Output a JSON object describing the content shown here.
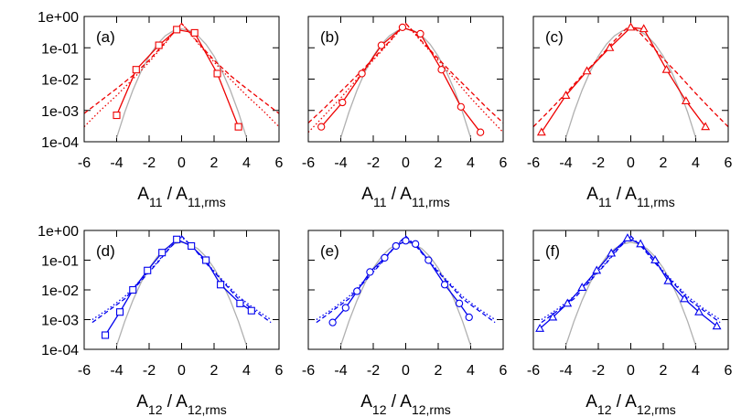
{
  "chart_data": [
    {
      "type": "line",
      "label": "(a)",
      "log_y": true,
      "xlabel": [
        {
          "text": "A"
        },
        {
          "text": "11",
          "sub": true
        },
        {
          "text": " / A"
        },
        {
          "text": "11,rms",
          "sub": true
        }
      ],
      "xlim": [
        -6,
        6
      ],
      "xticks": [
        -6,
        -4,
        -2,
        0,
        2,
        4,
        6
      ],
      "ylim": [
        0.0001,
        1
      ],
      "yticks": [
        {
          "value": 0.0001,
          "label": "1e-04"
        },
        {
          "value": 0.001,
          "label": "1e-03"
        },
        {
          "value": 0.01,
          "label": "1e-02"
        },
        {
          "value": 0.1,
          "label": "1e-01"
        },
        {
          "value": 1,
          "label": "1e+00"
        }
      ],
      "series": [
        {
          "color": "#b0b0b0",
          "dash": "solid",
          "x": [
            -4,
            -3.5,
            -3,
            -2.5,
            -2,
            -1.5,
            -1,
            -0.5,
            0,
            0.5,
            1,
            1.5,
            2,
            2.5,
            3,
            3.5,
            4
          ],
          "values": [
            0.000134,
            0.000873,
            0.00443,
            0.0175,
            0.054,
            0.1295,
            0.242,
            0.352,
            0.399,
            0.352,
            0.242,
            0.1295,
            0.054,
            0.0175,
            0.00443,
            0.000873,
            0.000134
          ]
        },
        {
          "color": "#ee0000",
          "dash": "dashed",
          "x": [
            -6,
            -5,
            -4,
            -3,
            -2,
            -1,
            -0.5,
            0,
            0.5,
            1,
            2,
            3,
            4,
            5,
            6
          ],
          "values": [
            0.0008,
            0.002,
            0.005,
            0.013,
            0.04,
            0.15,
            0.3,
            0.6,
            0.3,
            0.15,
            0.04,
            0.013,
            0.005,
            0.002,
            0.0008
          ]
        },
        {
          "color": "#ee0000",
          "dash": "dotted",
          "x": [
            -6,
            -5,
            -4,
            -3,
            -2,
            -1,
            -0.5,
            0,
            0.5,
            1,
            2,
            3,
            4,
            5,
            6
          ],
          "values": [
            0.0003,
            0.001,
            0.003,
            0.01,
            0.035,
            0.14,
            0.3,
            0.6,
            0.3,
            0.14,
            0.035,
            0.01,
            0.003,
            0.001,
            0.0003
          ]
        },
        {
          "color": "#ee0000",
          "dash": "solid",
          "marker": "square",
          "x": [
            -4,
            -2.8,
            -1.4,
            -0.3,
            0.8,
            2.2,
            3.5
          ],
          "values": [
            0.0007,
            0.02,
            0.12,
            0.38,
            0.3,
            0.015,
            0.0003
          ]
        }
      ]
    },
    {
      "type": "line",
      "label": "(b)",
      "log_y": true,
      "xlabel": [
        {
          "text": "A"
        },
        {
          "text": "11",
          "sub": true
        },
        {
          "text": " / A"
        },
        {
          "text": "11,rms",
          "sub": true
        }
      ],
      "xlim": [
        -6,
        6
      ],
      "xticks": [
        -6,
        -4,
        -2,
        0,
        2,
        4,
        6
      ],
      "ylim": [
        0.0001,
        1
      ],
      "yticks": [
        0.0001,
        0.001,
        0.01,
        0.1,
        1
      ],
      "series": [
        {
          "color": "#b0b0b0",
          "dash": "solid",
          "x": [
            -4,
            -3.5,
            -3,
            -2.5,
            -2,
            -1.5,
            -1,
            -0.5,
            0,
            0.5,
            1,
            1.5,
            2,
            2.5,
            3,
            3.5,
            4
          ],
          "values": [
            0.000134,
            0.000873,
            0.00443,
            0.0175,
            0.054,
            0.1295,
            0.242,
            0.352,
            0.399,
            0.352,
            0.242,
            0.1295,
            0.054,
            0.0175,
            0.00443,
            0.000873,
            0.000134
          ]
        },
        {
          "color": "#ee0000",
          "dash": "dashed",
          "x": [
            -6,
            -5,
            -4,
            -3,
            -2,
            -1,
            -0.5,
            0,
            0.5,
            1,
            2,
            3,
            4,
            5,
            6
          ],
          "values": [
            0.0004,
            0.0012,
            0.004,
            0.013,
            0.045,
            0.16,
            0.32,
            0.6,
            0.32,
            0.16,
            0.045,
            0.013,
            0.004,
            0.0012,
            0.0004
          ]
        },
        {
          "color": "#ee0000",
          "dash": "dotted",
          "x": [
            -6,
            -5,
            -4,
            -3,
            -2,
            -1,
            -0.5,
            0,
            0.5,
            1,
            2,
            3,
            4,
            5,
            6
          ],
          "values": [
            0.0002,
            0.0007,
            0.0025,
            0.01,
            0.04,
            0.15,
            0.3,
            0.6,
            0.3,
            0.15,
            0.04,
            0.01,
            0.0025,
            0.0007,
            0.0002
          ]
        },
        {
          "color": "#ee0000",
          "dash": "solid",
          "marker": "circle",
          "x": [
            -5.2,
            -3.9,
            -2.7,
            -1.5,
            -0.2,
            0.9,
            2.2,
            3.4,
            4.6
          ],
          "values": [
            0.0003,
            0.0018,
            0.015,
            0.12,
            0.45,
            0.28,
            0.02,
            0.0013,
            0.0002
          ]
        }
      ]
    },
    {
      "type": "line",
      "label": "(c)",
      "log_y": true,
      "xlabel": [
        {
          "text": "A"
        },
        {
          "text": "11",
          "sub": true
        },
        {
          "text": " / A"
        },
        {
          "text": "11,rms",
          "sub": true
        }
      ],
      "xlim": [
        -6,
        6
      ],
      "xticks": [
        -6,
        -4,
        -2,
        0,
        2,
        4,
        6
      ],
      "ylim": [
        0.0001,
        1
      ],
      "yticks": [
        0.0001,
        0.001,
        0.01,
        0.1,
        1
      ],
      "series": [
        {
          "color": "#b0b0b0",
          "dash": "solid",
          "x": [
            -4,
            -3.5,
            -3,
            -2.5,
            -2,
            -1.5,
            -1,
            -0.5,
            0,
            0.5,
            1,
            1.5,
            2,
            2.5,
            3,
            3.5,
            4
          ],
          "values": [
            0.000134,
            0.000873,
            0.00443,
            0.0175,
            0.054,
            0.1295,
            0.242,
            0.352,
            0.399,
            0.352,
            0.242,
            0.1295,
            0.054,
            0.0175,
            0.00443,
            0.000873,
            0.000134
          ]
        },
        {
          "color": "#ee0000",
          "dash": "dashed",
          "x": [
            -6,
            -5,
            -4,
            -3,
            -2,
            -1,
            -0.5,
            0,
            0.5,
            1,
            2,
            3,
            4,
            5,
            6
          ],
          "values": [
            0.0003,
            0.001,
            0.0035,
            0.013,
            0.045,
            0.17,
            0.32,
            0.55,
            0.32,
            0.17,
            0.045,
            0.013,
            0.0035,
            0.001,
            0.0003
          ]
        },
        {
          "color": "#ee0000",
          "dash": "solid",
          "marker": "triangle",
          "x": [
            -5.5,
            -4,
            -2.7,
            -1.3,
            0,
            0.8,
            2.2,
            3.4,
            4.6
          ],
          "values": [
            0.0002,
            0.003,
            0.018,
            0.1,
            0.45,
            0.4,
            0.02,
            0.002,
            0.0003
          ]
        }
      ]
    },
    {
      "type": "line",
      "label": "(d)",
      "log_y": true,
      "xlabel": [
        {
          "text": "A"
        },
        {
          "text": "12",
          "sub": true
        },
        {
          "text": " / A"
        },
        {
          "text": "12,rms",
          "sub": true
        }
      ],
      "xlim": [
        -6,
        6
      ],
      "xticks": [
        -6,
        -4,
        -2,
        0,
        2,
        4,
        6
      ],
      "ylim": [
        0.0001,
        1
      ],
      "yticks": [
        {
          "value": 0.0001,
          "label": "1e-04"
        },
        {
          "value": 0.001,
          "label": "1e-03"
        },
        {
          "value": 0.01,
          "label": "1e-02"
        },
        {
          "value": 0.1,
          "label": "1e-01"
        },
        {
          "value": 1,
          "label": "1e+00"
        }
      ],
      "series": [
        {
          "color": "#b0b0b0",
          "dash": "solid",
          "x": [
            -4,
            -3.5,
            -3,
            -2.5,
            -2,
            -1.5,
            -1,
            -0.5,
            0,
            0.5,
            1,
            1.5,
            2,
            2.5,
            3,
            3.5,
            4
          ],
          "values": [
            0.000134,
            0.000873,
            0.00443,
            0.0175,
            0.054,
            0.1295,
            0.242,
            0.352,
            0.399,
            0.352,
            0.242,
            0.1295,
            0.054,
            0.0175,
            0.00443,
            0.000873,
            0.000134
          ]
        },
        {
          "color": "#0000ee",
          "dash": "dashed",
          "x": [
            -5.5,
            -4.5,
            -3.5,
            -2.5,
            -1.5,
            -0.75,
            0,
            0.75,
            1.5,
            2.5,
            3.5,
            4.5,
            5.5
          ],
          "values": [
            0.0008,
            0.002,
            0.005,
            0.02,
            0.08,
            0.25,
            0.65,
            0.25,
            0.08,
            0.02,
            0.005,
            0.002,
            0.0008
          ]
        },
        {
          "color": "#0000ee",
          "dash": "dotted",
          "x": [
            -5.5,
            -4.5,
            -3.5,
            -2.5,
            -1.5,
            -0.75,
            0,
            0.75,
            1.5,
            2.5,
            3.5,
            4.5,
            5.5
          ],
          "values": [
            0.001,
            0.0023,
            0.006,
            0.022,
            0.085,
            0.26,
            0.6,
            0.26,
            0.085,
            0.022,
            0.006,
            0.0023,
            0.001
          ]
        },
        {
          "color": "#0000ee",
          "dash": "solid",
          "marker": "square",
          "x": [
            -4.7,
            -3.8,
            -3,
            -2.1,
            -1.2,
            -0.3,
            0.6,
            1.5,
            2.4,
            3.6,
            4.3
          ],
          "values": [
            0.0003,
            0.0018,
            0.01,
            0.045,
            0.18,
            0.5,
            0.3,
            0.1,
            0.015,
            0.0035,
            0.002
          ]
        }
      ]
    },
    {
      "type": "line",
      "label": "(e)",
      "log_y": true,
      "xlabel": [
        {
          "text": "A"
        },
        {
          "text": "12",
          "sub": true
        },
        {
          "text": " / A"
        },
        {
          "text": "12,rms",
          "sub": true
        }
      ],
      "xlim": [
        -6,
        6
      ],
      "xticks": [
        -6,
        -4,
        -2,
        0,
        2,
        4,
        6
      ],
      "ylim": [
        0.0001,
        1
      ],
      "yticks": [
        0.0001,
        0.001,
        0.01,
        0.1,
        1
      ],
      "series": [
        {
          "color": "#b0b0b0",
          "dash": "solid",
          "x": [
            -4,
            -3.5,
            -3,
            -2.5,
            -2,
            -1.5,
            -1,
            -0.5,
            0,
            0.5,
            1,
            1.5,
            2,
            2.5,
            3,
            3.5,
            4
          ],
          "values": [
            0.000134,
            0.000873,
            0.00443,
            0.0175,
            0.054,
            0.1295,
            0.242,
            0.352,
            0.399,
            0.352,
            0.242,
            0.1295,
            0.054,
            0.0175,
            0.00443,
            0.000873,
            0.000134
          ]
        },
        {
          "color": "#0000ee",
          "dash": "dashed",
          "x": [
            -5.5,
            -4.5,
            -3.5,
            -2.5,
            -1.5,
            -0.75,
            0,
            0.75,
            1.5,
            2.5,
            3.5,
            4.5,
            5.5
          ],
          "values": [
            0.0008,
            0.002,
            0.005,
            0.02,
            0.08,
            0.25,
            0.65,
            0.25,
            0.08,
            0.02,
            0.005,
            0.002,
            0.0008
          ]
        },
        {
          "color": "#0000ee",
          "dash": "dotted",
          "x": [
            -5.5,
            -4.5,
            -3.5,
            -2.5,
            -1.5,
            -0.75,
            0,
            0.75,
            1.5,
            2.5,
            3.5,
            4.5,
            5.5
          ],
          "values": [
            0.001,
            0.0023,
            0.006,
            0.022,
            0.085,
            0.26,
            0.6,
            0.26,
            0.085,
            0.022,
            0.006,
            0.0023,
            0.001
          ]
        },
        {
          "color": "#0000ee",
          "dash": "solid",
          "marker": "circle",
          "x": [
            -4.5,
            -3.7,
            -3,
            -2.2,
            -1.3,
            -0.6,
            0,
            0.6,
            1.4,
            2.4,
            3.3,
            3.9
          ],
          "values": [
            0.0008,
            0.0025,
            0.009,
            0.04,
            0.12,
            0.3,
            0.45,
            0.35,
            0.1,
            0.015,
            0.0035,
            0.0012
          ]
        }
      ]
    },
    {
      "type": "line",
      "label": "(f)",
      "log_y": true,
      "xlabel": [
        {
          "text": "A"
        },
        {
          "text": "12",
          "sub": true
        },
        {
          "text": " / A"
        },
        {
          "text": "12,rms",
          "sub": true
        }
      ],
      "xlim": [
        -6,
        6
      ],
      "xticks": [
        -6,
        -4,
        -2,
        0,
        2,
        4,
        6
      ],
      "ylim": [
        0.0001,
        1
      ],
      "yticks": [
        0.0001,
        0.001,
        0.01,
        0.1,
        1
      ],
      "series": [
        {
          "color": "#b0b0b0",
          "dash": "solid",
          "x": [
            -4,
            -3.5,
            -3,
            -2.5,
            -2,
            -1.5,
            -1,
            -0.5,
            0,
            0.5,
            1,
            1.5,
            2,
            2.5,
            3,
            3.5,
            4
          ],
          "values": [
            0.000134,
            0.000873,
            0.00443,
            0.0175,
            0.054,
            0.1295,
            0.242,
            0.352,
            0.399,
            0.352,
            0.242,
            0.1295,
            0.054,
            0.0175,
            0.00443,
            0.000873,
            0.000134
          ]
        },
        {
          "color": "#0000ee",
          "dash": "dashed",
          "x": [
            -5.5,
            -4.5,
            -3.5,
            -2.5,
            -1.5,
            -0.75,
            0,
            0.75,
            1.5,
            2.5,
            3.5,
            4.5,
            5.5
          ],
          "values": [
            0.0008,
            0.002,
            0.005,
            0.02,
            0.08,
            0.25,
            0.65,
            0.25,
            0.08,
            0.02,
            0.005,
            0.002,
            0.0008
          ]
        },
        {
          "color": "#0000ee",
          "dash": "dotted",
          "x": [
            -5.5,
            -4.5,
            -3.5,
            -2.5,
            -1.5,
            -0.75,
            0,
            0.75,
            1.5,
            2.5,
            3.5,
            4.5,
            5.5
          ],
          "values": [
            0.001,
            0.0023,
            0.006,
            0.022,
            0.085,
            0.26,
            0.6,
            0.26,
            0.085,
            0.022,
            0.006,
            0.0023,
            0.001
          ]
        },
        {
          "color": "#0000ee",
          "dash": "solid",
          "marker": "triangle",
          "x": [
            -5.6,
            -4.8,
            -3.9,
            -3,
            -2.1,
            -1.2,
            -0.2,
            0.6,
            1.5,
            2.3,
            3.3,
            4.2,
            5.3
          ],
          "values": [
            0.0005,
            0.0012,
            0.0035,
            0.012,
            0.045,
            0.17,
            0.55,
            0.35,
            0.1,
            0.02,
            0.005,
            0.0018,
            0.0006
          ]
        }
      ]
    }
  ]
}
